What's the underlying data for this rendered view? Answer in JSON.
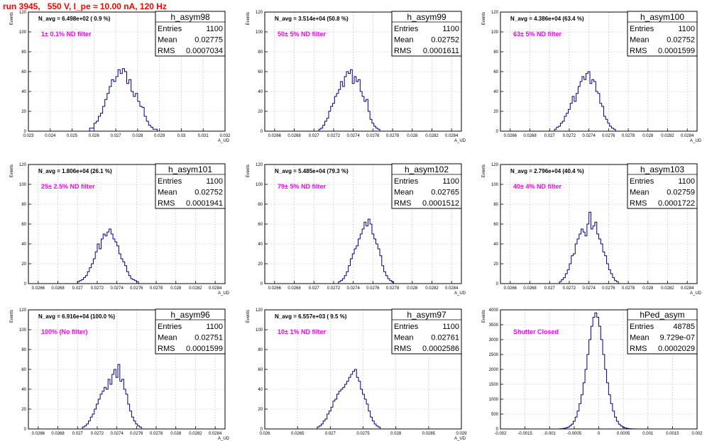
{
  "run_title": "run 3945,   550 V, I_pe ≈ 10.00 nA, 120 Hz",
  "stats_labels": {
    "entries": "Entries",
    "mean": "Mean",
    "rms": "RMS"
  },
  "chart_data": [
    {
      "type": "bar",
      "name": "h_asym98",
      "navg": "N_avg = 6.498e+02 ( 0.9 %)",
      "filter": "1± 0.1% ND filter",
      "entries": "1100",
      "mean": "0.02775",
      "rms": "0.0007034",
      "xlabel": "A_UD",
      "ylabel": "Events",
      "xlim": [
        0.023,
        0.032
      ],
      "ylim": [
        0,
        120
      ],
      "xticks": [
        0.023,
        0.024,
        0.025,
        0.026,
        0.027,
        0.028,
        0.029,
        0.03,
        0.031,
        0.032
      ],
      "xticklabels": [
        "0.023",
        "0.024",
        "0.025",
        "0.026",
        "0.027",
        "0.028",
        "0.029",
        "0.03",
        "0.031",
        "0.032"
      ],
      "yticks": [
        0,
        20,
        40,
        60,
        80,
        100,
        120
      ],
      "yticklabels": [
        "0",
        "20",
        "40",
        "60",
        "80",
        "100",
        "120"
      ],
      "bins_start": 0.0258,
      "bin_width": 0.0001,
      "counts": [
        3,
        3,
        8,
        10,
        15,
        18,
        25,
        32,
        38,
        45,
        52,
        50,
        55,
        62,
        58,
        63,
        60,
        48,
        52,
        40,
        35,
        38,
        30,
        25,
        24,
        15,
        10,
        6,
        4,
        2,
        2
      ]
    },
    {
      "type": "bar",
      "name": "h_asym99",
      "navg": "N_avg = 3.514e+04 (50.8 %)",
      "filter": "50± 5% ND filter",
      "entries": "1100",
      "mean": "0.02752",
      "rms": "0.0001611",
      "xlabel": "A_UD",
      "ylabel": "Events",
      "xlim": [
        0.0265,
        0.0285
      ],
      "ylim": [
        0,
        120
      ],
      "xticks": [
        0.0266,
        0.0268,
        0.027,
        0.0272,
        0.0274,
        0.0276,
        0.0278,
        0.028,
        0.0282,
        0.0284
      ],
      "xticklabels": [
        "0.0266",
        "0.0268",
        "0.027",
        "0.0272",
        "0.0274",
        "0.0276",
        "0.0278",
        "0.028",
        "0.0282",
        "0.0284"
      ],
      "yticks": [
        0,
        20,
        40,
        60,
        80,
        100,
        120
      ],
      "yticklabels": [
        "0",
        "20",
        "40",
        "60",
        "80",
        "100",
        "120"
      ],
      "bins_start": 0.02705,
      "bin_width": 2e-05,
      "counts": [
        2,
        3,
        6,
        10,
        13,
        20,
        25,
        28,
        35,
        38,
        42,
        50,
        45,
        55,
        60,
        58,
        62,
        48,
        55,
        50,
        52,
        40,
        35,
        30,
        32,
        20,
        12,
        8,
        5,
        3,
        2
      ]
    },
    {
      "type": "bar",
      "name": "h_asym100",
      "navg": "N_avg = 4.386e+04 (63.4 %)",
      "filter": "63± 5% ND filter",
      "entries": "1100",
      "mean": "0.02752",
      "rms": "0.0001599",
      "xlabel": "A_UD",
      "ylabel": "Events",
      "xlim": [
        0.0265,
        0.0285
      ],
      "ylim": [
        0,
        120
      ],
      "xticks": [
        0.0266,
        0.0268,
        0.027,
        0.0272,
        0.0274,
        0.0276,
        0.0278,
        0.028,
        0.0282,
        0.0284
      ],
      "xticklabels": [
        "0.0266",
        "0.0268",
        "0.027",
        "0.0272",
        "0.0274",
        "0.0276",
        "0.0278",
        "0.028",
        "0.0282",
        "0.0284"
      ],
      "yticks": [
        0,
        20,
        40,
        60,
        80,
        100,
        120
      ],
      "yticklabels": [
        "0",
        "20",
        "40",
        "60",
        "80",
        "100",
        "120"
      ],
      "bins_start": 0.02705,
      "bin_width": 2e-05,
      "counts": [
        2,
        4,
        5,
        8,
        10,
        15,
        18,
        22,
        28,
        35,
        30,
        38,
        45,
        50,
        55,
        52,
        58,
        60,
        48,
        52,
        50,
        40,
        38,
        28,
        25,
        15,
        12,
        8,
        5,
        3,
        2
      ]
    },
    {
      "type": "bar",
      "name": "h_asym101",
      "navg": "N_avg = 1.806e+04 (26.1 %)",
      "filter": "25± 2.5% ND filter",
      "entries": "1100",
      "mean": "0.02752",
      "rms": "0.0001941",
      "xlabel": "A_UD",
      "ylabel": "Events",
      "xlim": [
        0.0265,
        0.0285
      ],
      "ylim": [
        0,
        120
      ],
      "xticks": [
        0.0266,
        0.0268,
        0.027,
        0.0272,
        0.0274,
        0.0276,
        0.0278,
        0.028,
        0.0282,
        0.0284
      ],
      "xticklabels": [
        "0.0266",
        "0.0268",
        "0.027",
        "0.0272",
        "0.0274",
        "0.0276",
        "0.0278",
        "0.028",
        "0.0282",
        "0.0284"
      ],
      "yticks": [
        0,
        20,
        40,
        60,
        80,
        100,
        120
      ],
      "yticklabels": [
        "0",
        "20",
        "40",
        "60",
        "80",
        "100",
        "120"
      ],
      "bins_start": 0.027,
      "bin_width": 2e-05,
      "counts": [
        2,
        3,
        4,
        6,
        8,
        12,
        16,
        20,
        25,
        32,
        40,
        35,
        45,
        50,
        48,
        52,
        55,
        50,
        45,
        42,
        38,
        30,
        25,
        22,
        18,
        12,
        8,
        5,
        4,
        3,
        2
      ]
    },
    {
      "type": "bar",
      "name": "h_asym102",
      "navg": "N_avg = 5.485e+04 (79.3 %)",
      "filter": "79± 5% ND filter",
      "entries": "1100",
      "mean": "0.02765",
      "rms": "0.0001512",
      "xlabel": "A_UD",
      "ylabel": "Events",
      "xlim": [
        0.0265,
        0.0285
      ],
      "ylim": [
        0,
        120
      ],
      "xticks": [
        0.0266,
        0.0268,
        0.027,
        0.0272,
        0.0274,
        0.0276,
        0.0278,
        0.028,
        0.0282,
        0.0284
      ],
      "xticklabels": [
        "0.0266",
        "0.0268",
        "0.027",
        "0.0272",
        "0.0274",
        "0.0276",
        "0.0278",
        "0.028",
        "0.0282",
        "0.0284"
      ],
      "yticks": [
        0,
        20,
        40,
        60,
        80,
        100,
        120
      ],
      "yticklabels": [
        "0",
        "20",
        "40",
        "60",
        "80",
        "100",
        "120"
      ],
      "bins_start": 0.02725,
      "bin_width": 2e-05,
      "counts": [
        2,
        3,
        5,
        8,
        12,
        18,
        25,
        30,
        35,
        38,
        45,
        50,
        55,
        62,
        58,
        65,
        60,
        50,
        45,
        40,
        35,
        28,
        18,
        12,
        8,
        5,
        3,
        2
      ]
    },
    {
      "type": "bar",
      "name": "h_asym103",
      "navg": "N_avg = 2.796e+04 (40.4 %)",
      "filter": "40± 4% ND filter",
      "entries": "1100",
      "mean": "0.02759",
      "rms": "0.0001722",
      "xlabel": "A_UD",
      "ylabel": "Events",
      "xlim": [
        0.0265,
        0.0285
      ],
      "ylim": [
        0,
        120
      ],
      "xticks": [
        0.0266,
        0.0268,
        0.027,
        0.0272,
        0.0274,
        0.0276,
        0.0278,
        0.028,
        0.0282,
        0.0284
      ],
      "xticklabels": [
        "0.0266",
        "0.0268",
        "0.027",
        "0.0272",
        "0.0274",
        "0.0276",
        "0.0278",
        "0.028",
        "0.0282",
        "0.0284"
      ],
      "yticks": [
        0,
        20,
        40,
        60,
        80,
        100,
        120
      ],
      "yticklabels": [
        "0",
        "20",
        "40",
        "60",
        "80",
        "100",
        "120"
      ],
      "bins_start": 0.0271,
      "bin_width": 2e-05,
      "counts": [
        2,
        4,
        6,
        10,
        14,
        20,
        28,
        30,
        40,
        45,
        50,
        55,
        52,
        48,
        60,
        72,
        55,
        58,
        62,
        50,
        45,
        40,
        32,
        28,
        20,
        14,
        10,
        6,
        3,
        2
      ]
    },
    {
      "type": "bar",
      "name": "h_asym96",
      "navg": "N_avg = 6.916e+04 (100.0 %)",
      "filter": "100% (No filter)",
      "entries": "1100",
      "mean": "0.02751",
      "rms": "0.0001599",
      "xlabel": "A_UD",
      "ylabel": "Events",
      "xlim": [
        0.0265,
        0.0285
      ],
      "ylim": [
        0,
        120
      ],
      "xticks": [
        0.0266,
        0.0268,
        0.027,
        0.0272,
        0.0274,
        0.0276,
        0.0278,
        0.028,
        0.0282,
        0.0284
      ],
      "xticklabels": [
        "0.0266",
        "0.0268",
        "0.027",
        "0.0272",
        "0.0274",
        "0.0276",
        "0.0278",
        "0.028",
        "0.0282",
        "0.0284"
      ],
      "yticks": [
        0,
        20,
        40,
        60,
        80,
        100,
        120
      ],
      "yticklabels": [
        "0",
        "20",
        "40",
        "60",
        "80",
        "100",
        "120"
      ],
      "bins_start": 0.02705,
      "bin_width": 2e-05,
      "counts": [
        2,
        3,
        5,
        8,
        12,
        15,
        20,
        25,
        30,
        35,
        38,
        42,
        40,
        50,
        45,
        55,
        60,
        52,
        65,
        48,
        50,
        40,
        35,
        25,
        18,
        12,
        8,
        5,
        3,
        2
      ]
    },
    {
      "type": "bar",
      "name": "h_asym97",
      "navg": "N_avg = 6.557e+03 ( 9.5 %)",
      "filter": "10± 1% ND filter",
      "entries": "1100",
      "mean": "0.02761",
      "rms": "0.0002586",
      "xlabel": "A_UD",
      "ylabel": "Events",
      "xlim": [
        0.026,
        0.029
      ],
      "ylim": [
        0,
        120
      ],
      "xticks": [
        0.026,
        0.0265,
        0.027,
        0.0275,
        0.028,
        0.0285,
        0.029
      ],
      "xticklabels": [
        "0.026",
        "0.0265",
        "0.027",
        "0.0275",
        "0.028",
        "0.0285",
        "0.029"
      ],
      "yticks": [
        0,
        20,
        40,
        60,
        80,
        100,
        120
      ],
      "yticklabels": [
        "0",
        "20",
        "40",
        "60",
        "80",
        "100",
        "120"
      ],
      "bins_start": 0.0268,
      "bin_width": 3e-05,
      "counts": [
        2,
        3,
        5,
        8,
        10,
        15,
        18,
        22,
        28,
        30,
        35,
        38,
        40,
        42,
        45,
        48,
        52,
        55,
        58,
        60,
        52,
        48,
        40,
        35,
        30,
        25,
        18,
        12,
        8,
        5,
        3,
        2
      ]
    },
    {
      "type": "bar",
      "name": "hPed_asym",
      "navg": "",
      "filter": "Shutter Closed",
      "entries": "48785",
      "mean": "9.729e-07",
      "rms": "0.0002029",
      "xlabel": "",
      "ylabel": "Events",
      "xlim": [
        -0.002,
        0.002
      ],
      "ylim": [
        0,
        4000
      ],
      "xticks": [
        -0.002,
        -0.0015,
        -0.001,
        -0.0005,
        0,
        0.0005,
        0.001,
        0.0015,
        0.002
      ],
      "xticklabels": [
        "-0.002",
        "-0.0015",
        "-0.001",
        "-0.0005",
        "0",
        "0.0005",
        "0.001",
        "0.0015",
        "0.002"
      ],
      "yticks": [
        0,
        500,
        1000,
        1500,
        2000,
        2500,
        3000,
        3500,
        4000
      ],
      "yticklabels": [
        "0",
        "500",
        "1000",
        "1500",
        "2000",
        "2500",
        "3000",
        "3500",
        "4000"
      ],
      "bins_start": -0.0008,
      "bin_width": 4e-05,
      "counts": [
        5,
        10,
        20,
        35,
        60,
        100,
        160,
        260,
        400,
        600,
        850,
        1150,
        1550,
        2000,
        2500,
        3000,
        3450,
        3750,
        3900,
        3750,
        3450,
        3000,
        2500,
        2000,
        1550,
        1150,
        850,
        600,
        400,
        260,
        160,
        100,
        60,
        35,
        20,
        10,
        5,
        3,
        2,
        1
      ]
    }
  ]
}
